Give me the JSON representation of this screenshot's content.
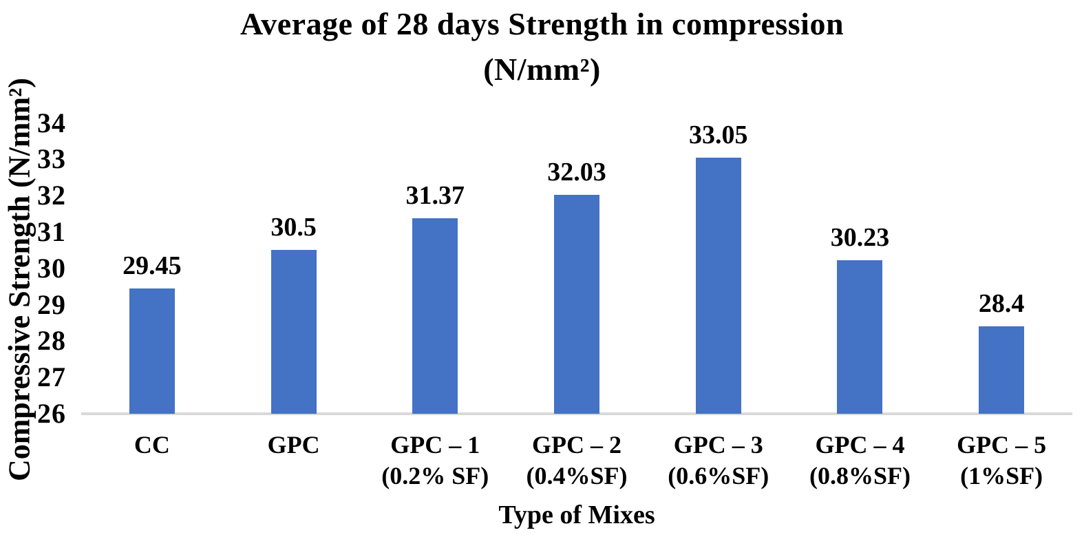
{
  "title": {
    "line1": "Average of 28 days Strength in compression",
    "line2": "(N/mm²)"
  },
  "axes": {
    "y_title": "Compressive Strength (N/mm²)",
    "x_title": "Type of Mixes"
  },
  "chart_data": {
    "type": "bar",
    "title": "Average of 28 days Strength in compression (N/mm²)",
    "xlabel": "Type of Mixes",
    "ylabel": "Compressive Strength (N/mm²)",
    "categories": [
      "CC",
      "GPC",
      "GPC – 1\n(0.2% SF)",
      "GPC – 2\n(0.4%SF)",
      "GPC – 3\n(0.6%SF)",
      "GPC – 4\n(0.8%SF)",
      "GPC – 5\n(1%SF)"
    ],
    "values": [
      29.45,
      30.5,
      31.37,
      32.03,
      33.05,
      30.23,
      28.4
    ],
    "value_labels": [
      "29.45",
      "30.5",
      "31.37",
      "32.03",
      "33.05",
      "30.23",
      "28.4"
    ],
    "yticks": [
      26,
      27,
      28,
      29,
      30,
      31,
      32,
      33,
      34
    ],
    "ylim": [
      26,
      34
    ],
    "grid": false,
    "legend": "none",
    "bar_color": "#4472C4",
    "axis_line_color": "#D9D9D9",
    "text_color": "#000000"
  }
}
